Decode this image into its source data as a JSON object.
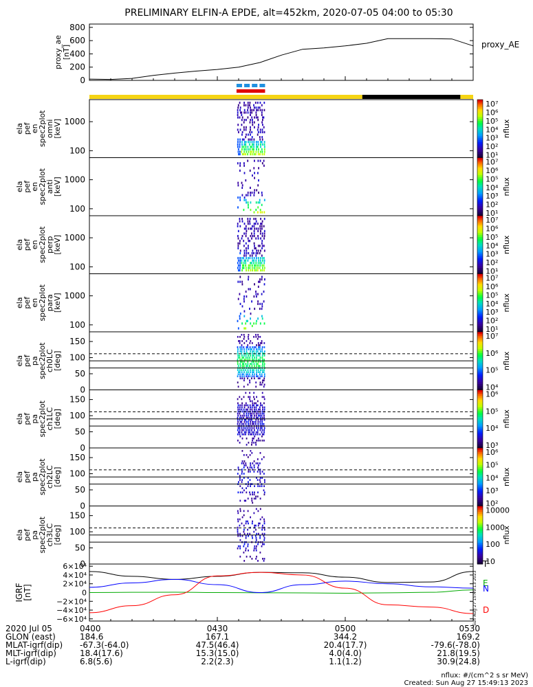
{
  "title": "PRELIMINARY ELFIN-A EPDE, alt=452km, 2020-07-05 04:00 to 05:30",
  "proxy_ae": {
    "ylabel": [
      "proxy_ae",
      "[nT]"
    ],
    "legend": "proxy_AE",
    "yticks": [
      "800",
      "600",
      "400",
      "200",
      "0"
    ],
    "ylim": [
      0,
      800
    ]
  },
  "spec_panels": [
    {
      "ylabel": [
        "ela",
        "pef",
        "en",
        "spec2plot",
        "omni",
        "[keV]"
      ],
      "yticks": [
        "1000",
        "100"
      ],
      "cbar_labels": [
        "10⁷",
        "10⁶",
        "10⁵",
        "10⁴",
        "10³",
        "10²",
        "10¹"
      ],
      "cbar_unit": "nflux"
    },
    {
      "ylabel": [
        "ela",
        "pef",
        "en",
        "spec2plot",
        "anti",
        "[keV]"
      ],
      "yticks": [
        "1000",
        "100"
      ],
      "cbar_labels": [
        "10⁷",
        "10⁶",
        "10⁵",
        "10⁴",
        "10³",
        "10²",
        "10¹"
      ],
      "cbar_unit": "nflux"
    },
    {
      "ylabel": [
        "ela",
        "pef",
        "en",
        "spec2plot",
        "perp",
        "[keV]"
      ],
      "yticks": [
        "1000",
        "100"
      ],
      "cbar_labels": [
        "10⁷",
        "10⁶",
        "10⁵",
        "10⁴",
        "10³",
        "10²",
        "10¹"
      ],
      "cbar_unit": "nflux"
    },
    {
      "ylabel": [
        "ela",
        "pef",
        "en",
        "spec2plot",
        "para",
        "[keV]"
      ],
      "yticks": [
        "1000",
        "100"
      ],
      "cbar_labels": [
        "10⁷",
        "10⁶",
        "10⁵",
        "10⁴",
        "10³",
        "10²",
        "10¹"
      ],
      "cbar_unit": "nflux"
    },
    {
      "ylabel": [
        "ela",
        "pef",
        "pa",
        "spec2plot",
        "ch0LC",
        "[deg]"
      ],
      "yticks": [
        "150",
        "100",
        "50",
        "0"
      ],
      "cbar_labels": [
        "10⁷",
        "10⁶",
        "10⁵",
        "10⁴"
      ],
      "cbar_unit": "nflux"
    },
    {
      "ylabel": [
        "ela",
        "pef",
        "pa",
        "spec2plot",
        "ch1LC",
        "[deg]"
      ],
      "yticks": [
        "150",
        "100",
        "50",
        "0"
      ],
      "cbar_labels": [
        "10⁶",
        "10⁵",
        "10⁴",
        "10³"
      ],
      "cbar_unit": "nflux"
    },
    {
      "ylabel": [
        "ela",
        "pef",
        "pa",
        "spec2plot",
        "ch2LC",
        "[deg]"
      ],
      "yticks": [
        "150",
        "100",
        "50",
        "0"
      ],
      "cbar_labels": [
        "10⁶",
        "10⁵",
        "10⁴",
        "10³",
        "10²"
      ],
      "cbar_unit": "nflux"
    },
    {
      "ylabel": [
        "ela",
        "pef",
        "pa",
        "spec2plot",
        "ch3LC",
        "[deg]"
      ],
      "yticks": [
        "150",
        "100",
        "50",
        "0"
      ],
      "cbar_labels": [
        "10000",
        "1000",
        "100",
        "10"
      ],
      "cbar_unit": "nflux"
    }
  ],
  "igrf": {
    "ylabel": [
      "IGRF",
      "[nT]"
    ],
    "yticks": [
      "6×10⁴",
      "4×10⁴",
      "2×10⁴",
      "0",
      "−2×10⁴",
      "−4×10⁴",
      "−6×10⁴"
    ],
    "legend": [
      {
        "label": "T",
        "color": "#000000"
      },
      {
        "label": "E",
        "color": "#00aa00"
      },
      {
        "label": "N",
        "color": "#0000ff"
      },
      {
        "label": "D",
        "color": "#ff0000"
      }
    ],
    "stamp": "Sun Aug 27 15:49:13 2023"
  },
  "footer": {
    "rows": [
      {
        "label": "2020 Jul 05",
        "values": [
          "0400",
          "0430",
          "0500",
          "0530"
        ]
      },
      {
        "label": "GLON (east)",
        "values": [
          "184.6",
          "167.1",
          "344.2",
          "169.2"
        ]
      },
      {
        "label": "MLAT-igrf(dip)",
        "values": [
          "-67.3(-64.0)",
          "47.5(46.4)",
          "20.4(17.7)",
          "-79.6(-78.0)"
        ]
      },
      {
        "label": "MLT-igrf(dip)",
        "values": [
          "18.4(17.6)",
          "15.3(15.0)",
          "4.0(4.0)",
          "21.8(19.5)"
        ]
      },
      {
        "label": "L-igrf(dip)",
        "values": [
          "6.8(5.6)",
          "2.2(2.3)",
          "1.1(1.2)",
          "30.9(24.8)"
        ]
      }
    ],
    "units_note": "nflux: #/(cm^2 s sr MeV)",
    "created": "Created: Sun Aug 27 15:49:13 2023"
  },
  "chart_data": [
    {
      "type": "line",
      "title": "PRELIMINARY ELFIN-A EPDE, alt=452km, 2020-07-05 04:00 to 05:30",
      "xlabel": "",
      "ylabel": "proxy_ae [nT]",
      "x": [
        "04:00",
        "04:05",
        "04:10",
        "04:15",
        "04:20",
        "04:25",
        "04:30",
        "04:35",
        "04:40",
        "04:45",
        "04:50",
        "04:55",
        "05:00",
        "05:05",
        "05:10",
        "05:15",
        "05:20",
        "05:25",
        "05:30"
      ],
      "series": [
        {
          "name": "proxy_AE",
          "values": [
            20,
            15,
            30,
            75,
            110,
            140,
            165,
            200,
            270,
            380,
            470,
            490,
            520,
            560,
            630,
            630,
            630,
            625,
            520
          ]
        }
      ],
      "ylim": [
        0,
        850
      ]
    },
    {
      "type": "heatmap",
      "note": "Electron spectrograms (energy and pitch-angle) with enhanced flux between about 04:36 and 04:43",
      "xlim": [
        "04:00",
        "05:30"
      ]
    },
    {
      "type": "line",
      "xlabel": "",
      "ylabel": "IGRF [nT]",
      "x": [
        "04:00",
        "04:10",
        "04:20",
        "04:30",
        "04:40",
        "04:50",
        "05:00",
        "05:10",
        "05:20",
        "05:30"
      ],
      "series": [
        {
          "name": "T",
          "values": [
            48000,
            37000,
            30000,
            37000,
            46000,
            45000,
            35000,
            23000,
            24000,
            48000
          ]
        },
        {
          "name": "E",
          "values": [
            0,
            500,
            800,
            0,
            -500,
            -800,
            -1500,
            -600,
            500,
            6000
          ]
        },
        {
          "name": "N",
          "values": [
            12000,
            22000,
            30000,
            18000,
            0,
            18000,
            26000,
            20000,
            13000,
            10000
          ]
        },
        {
          "name": "D",
          "values": [
            -46000,
            -30000,
            -5000,
            38000,
            46000,
            40000,
            10000,
            -28000,
            -33000,
            -48000
          ]
        }
      ],
      "ylim": [
        -65000,
        65000
      ]
    }
  ]
}
